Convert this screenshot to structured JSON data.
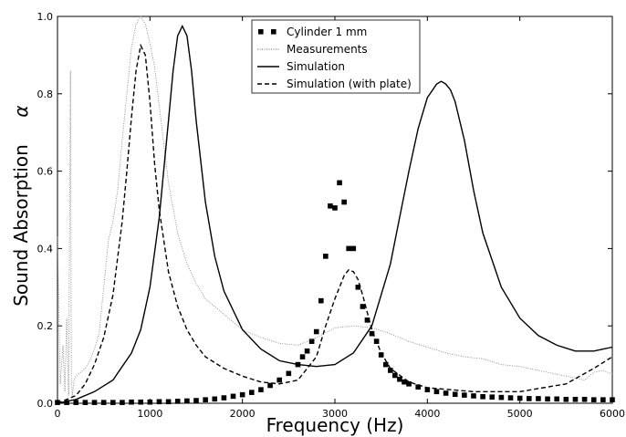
{
  "chart_data": {
    "type": "line",
    "title": "",
    "xlabel": "Frequency (Hz)",
    "ylabel": "Sound Absorption",
    "ylabel_symbol": "α",
    "xlim": [
      0,
      6000
    ],
    "ylim": [
      0,
      1.0
    ],
    "x_ticks": [
      0,
      1000,
      2000,
      3000,
      4000,
      5000,
      6000
    ],
    "y_ticks": [
      0.0,
      0.2,
      0.4,
      0.6,
      0.8,
      1.0
    ],
    "x_tick_labels": [
      "0",
      "1000",
      "2000",
      "3000",
      "4000",
      "5000",
      "6000"
    ],
    "y_tick_labels": [
      "0.0",
      "0.2",
      "0.4",
      "0.6",
      "0.8",
      "1.0"
    ],
    "grid": false,
    "legend_position": "top-center",
    "series": [
      {
        "name": "Cylinder 1 mm",
        "style": "squares",
        "color": "#000000",
        "x": [
          0,
          100,
          200,
          300,
          400,
          500,
          600,
          700,
          800,
          900,
          1000,
          1100,
          1200,
          1300,
          1400,
          1500,
          1600,
          1700,
          1800,
          1900,
          2000,
          2100,
          2200,
          2300,
          2400,
          2500,
          2600,
          2650,
          2700,
          2750,
          2800,
          2850,
          2900,
          2950,
          3000,
          3050,
          3100,
          3150,
          3200,
          3250,
          3300,
          3350,
          3400,
          3450,
          3500,
          3550,
          3600,
          3650,
          3700,
          3750,
          3800,
          3900,
          4000,
          4100,
          4200,
          4300,
          4400,
          4500,
          4600,
          4700,
          4800,
          4900,
          5000,
          5100,
          5200,
          5300,
          5400,
          5500,
          5600,
          5700,
          5800,
          5900,
          6000
        ],
        "y": [
          0.002,
          0.002,
          0.002,
          0.002,
          0.002,
          0.002,
          0.002,
          0.002,
          0.003,
          0.003,
          0.003,
          0.004,
          0.004,
          0.005,
          0.006,
          0.007,
          0.009,
          0.011,
          0.014,
          0.018,
          0.022,
          0.028,
          0.035,
          0.046,
          0.06,
          0.077,
          0.1,
          0.12,
          0.135,
          0.16,
          0.185,
          0.265,
          0.38,
          0.51,
          0.505,
          0.57,
          0.52,
          0.4,
          0.4,
          0.3,
          0.25,
          0.215,
          0.18,
          0.16,
          0.125,
          0.1,
          0.085,
          0.072,
          0.062,
          0.055,
          0.05,
          0.042,
          0.035,
          0.03,
          0.026,
          0.023,
          0.021,
          0.019,
          0.017,
          0.016,
          0.015,
          0.014,
          0.013,
          0.012,
          0.012,
          0.011,
          0.011,
          0.01,
          0.01,
          0.01,
          0.009,
          0.009,
          0.009
        ]
      },
      {
        "name": "Measurements",
        "style": "dotted",
        "color": "#888888",
        "x": [
          0,
          30,
          60,
          80,
          100,
          120,
          140,
          150,
          160,
          180,
          200,
          250,
          300,
          350,
          400,
          450,
          500,
          550,
          600,
          650,
          700,
          750,
          800,
          850,
          900,
          950,
          1000,
          1050,
          1100,
          1200,
          1300,
          1400,
          1500,
          1600,
          1700,
          1800,
          1900,
          2000,
          2200,
          2400,
          2600,
          2800,
          3000,
          3200,
          3400,
          3600,
          3800,
          4000,
          4200,
          4400,
          4600,
          4800,
          5000,
          5100,
          5200,
          5300,
          5400,
          5500,
          5600,
          5700,
          5800,
          5900,
          6000
        ],
        "y": [
          0.43,
          0.05,
          0.15,
          0.03,
          0.22,
          0.02,
          0.86,
          0.06,
          0.02,
          0.06,
          0.07,
          0.08,
          0.09,
          0.11,
          0.14,
          0.18,
          0.3,
          0.42,
          0.47,
          0.55,
          0.68,
          0.8,
          0.92,
          0.98,
          1.0,
          0.98,
          0.93,
          0.87,
          0.77,
          0.57,
          0.44,
          0.36,
          0.31,
          0.27,
          0.25,
          0.23,
          0.21,
          0.19,
          0.17,
          0.155,
          0.15,
          0.17,
          0.195,
          0.2,
          0.195,
          0.18,
          0.16,
          0.145,
          0.13,
          0.12,
          0.115,
          0.1,
          0.095,
          0.09,
          0.085,
          0.08,
          0.075,
          0.07,
          0.065,
          0.06,
          0.08,
          0.085,
          0.075
        ]
      },
      {
        "name": "Simulation",
        "style": "solid",
        "color": "#000000",
        "x": [
          0,
          200,
          400,
          600,
          800,
          900,
          1000,
          1100,
          1200,
          1250,
          1300,
          1350,
          1400,
          1450,
          1500,
          1600,
          1700,
          1800,
          2000,
          2200,
          2400,
          2600,
          2800,
          3000,
          3200,
          3400,
          3600,
          3700,
          3800,
          3900,
          4000,
          4100,
          4150,
          4200,
          4250,
          4300,
          4400,
          4500,
          4600,
          4800,
          5000,
          5200,
          5400,
          5600,
          5800,
          6000
        ],
        "y": [
          0.0,
          0.01,
          0.03,
          0.06,
          0.13,
          0.19,
          0.3,
          0.48,
          0.73,
          0.86,
          0.95,
          0.975,
          0.95,
          0.86,
          0.73,
          0.52,
          0.38,
          0.29,
          0.19,
          0.14,
          0.11,
          0.1,
          0.095,
          0.1,
          0.13,
          0.2,
          0.36,
          0.48,
          0.6,
          0.71,
          0.79,
          0.825,
          0.832,
          0.825,
          0.81,
          0.78,
          0.68,
          0.55,
          0.44,
          0.3,
          0.22,
          0.175,
          0.15,
          0.135,
          0.135,
          0.145
        ]
      },
      {
        "name": "Simulation (with plate)",
        "style": "dashed",
        "color": "#000000",
        "x": [
          0,
          200,
          300,
          400,
          500,
          600,
          700,
          750,
          800,
          850,
          900,
          950,
          1000,
          1050,
          1100,
          1200,
          1300,
          1400,
          1500,
          1600,
          1800,
          2000,
          2200,
          2400,
          2600,
          2800,
          2900,
          3000,
          3100,
          3150,
          3200,
          3250,
          3300,
          3400,
          3500,
          3600,
          3800,
          4000,
          4500,
          5000,
          5500,
          5800,
          6000
        ],
        "y": [
          0.0,
          0.02,
          0.05,
          0.1,
          0.17,
          0.28,
          0.47,
          0.6,
          0.74,
          0.86,
          0.925,
          0.9,
          0.78,
          0.62,
          0.5,
          0.34,
          0.25,
          0.19,
          0.15,
          0.12,
          0.09,
          0.07,
          0.055,
          0.05,
          0.06,
          0.12,
          0.2,
          0.27,
          0.33,
          0.345,
          0.34,
          0.32,
          0.28,
          0.19,
          0.13,
          0.09,
          0.055,
          0.04,
          0.03,
          0.03,
          0.05,
          0.09,
          0.12
        ]
      }
    ]
  }
}
